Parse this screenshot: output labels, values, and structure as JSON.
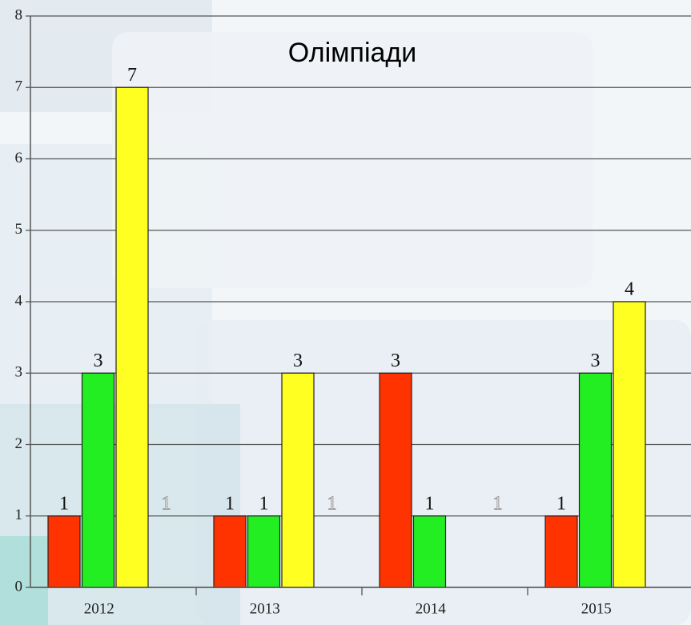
{
  "chart_data": {
    "type": "bar",
    "title": "Олімпіади",
    "categories": [
      "2012",
      "2013",
      "2014",
      "2015"
    ],
    "series": [
      {
        "color": "#ff3300",
        "values": [
          1,
          1,
          3,
          1
        ]
      },
      {
        "color": "#22ee22",
        "values": [
          3,
          1,
          1,
          3
        ]
      },
      {
        "color": "#ffff22",
        "values": [
          7,
          3,
          null,
          4
        ]
      },
      {
        "color": "none",
        "values": [
          1,
          1,
          1,
          null
        ]
      }
    ],
    "ylim": [
      0,
      8
    ],
    "yticks": [
      0,
      1,
      2,
      3,
      4,
      5,
      6,
      7,
      8
    ],
    "grid": true
  }
}
